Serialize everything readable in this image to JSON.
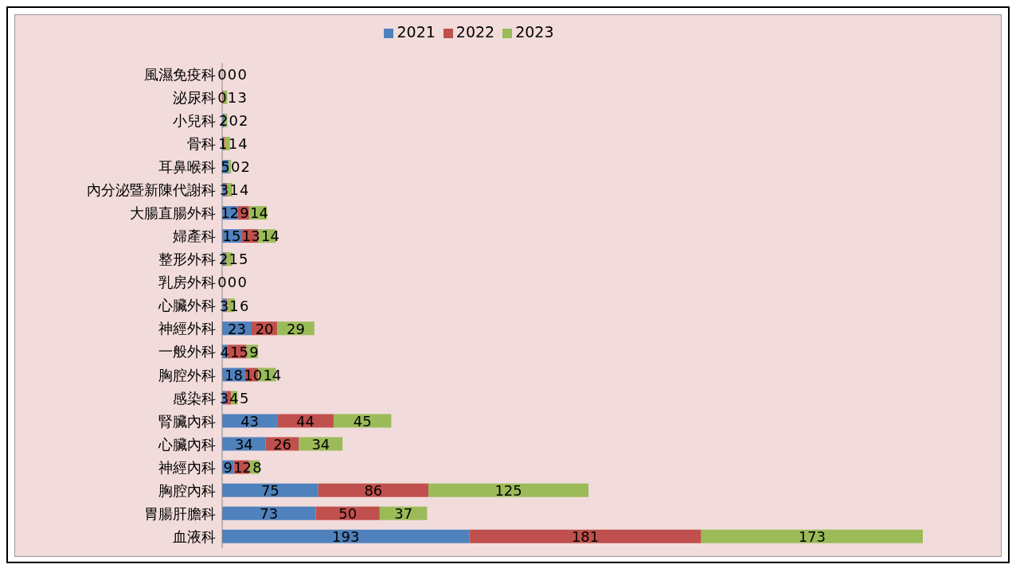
{
  "chart_data": {
    "type": "bar",
    "orientation": "horizontal",
    "stacked": true,
    "data_labels": true,
    "legend": "top",
    "grid": false,
    "categories": [
      "風濕免疫科",
      "泌尿科",
      "小兒科",
      "骨科",
      "耳鼻喉科",
      "內分泌暨新陳代謝科",
      "大腸直腸外科",
      "婦產科",
      "整形外科",
      "乳房外科",
      "心臟外科",
      "神經外科",
      "一般外科",
      "胸腔外科",
      "感染科",
      "腎臟內科",
      "心臟內科",
      "神經內科",
      "胸腔內科",
      "胃腸肝膽科",
      "血液科"
    ],
    "series": [
      {
        "name": "2021",
        "color": "#4f81bd",
        "values": [
          0,
          0,
          2,
          1,
          5,
          3,
          12,
          15,
          2,
          0,
          3,
          23,
          4,
          18,
          3,
          43,
          34,
          9,
          75,
          73,
          193
        ]
      },
      {
        "name": "2022",
        "color": "#c0504d",
        "values": [
          0,
          1,
          0,
          1,
          0,
          1,
          9,
          13,
          1,
          0,
          1,
          20,
          15,
          10,
          4,
          44,
          26,
          12,
          86,
          50,
          181
        ]
      },
      {
        "name": "2023",
        "color": "#9bbb59",
        "values": [
          0,
          3,
          2,
          4,
          2,
          4,
          14,
          14,
          5,
          0,
          6,
          29,
          9,
          14,
          5,
          45,
          34,
          8,
          125,
          37,
          173
        ]
      }
    ]
  }
}
